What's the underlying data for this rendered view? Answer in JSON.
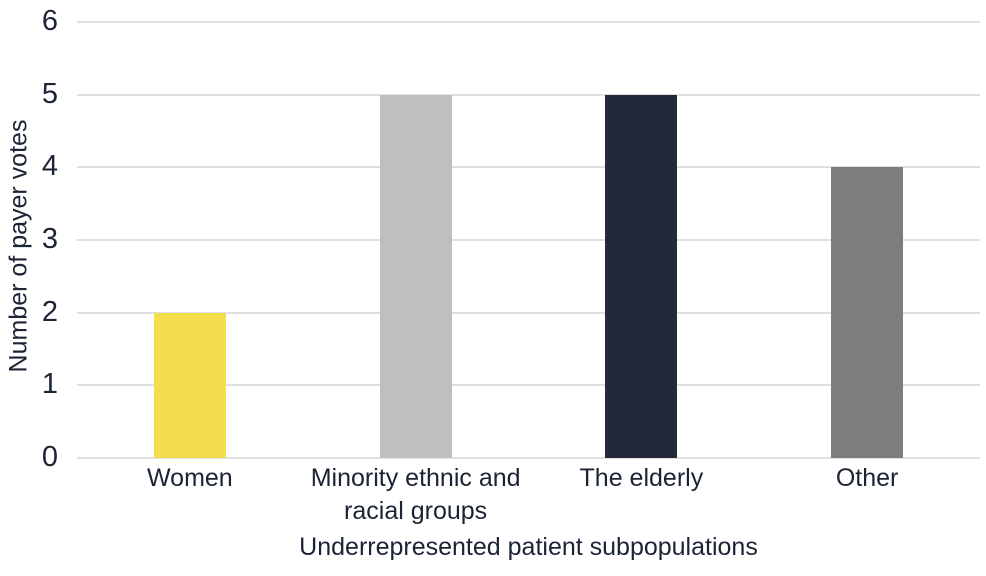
{
  "chart_data": {
    "type": "bar",
    "categories": [
      "Women",
      "Minority ethnic and racial groups",
      "The elderly",
      "Other"
    ],
    "category_slugs": [
      "women",
      "minority-ethnic-and-racial-groups",
      "the-elderly",
      "other"
    ],
    "values": [
      2,
      5,
      5,
      4
    ],
    "bar_colors": [
      "#F5DE4D",
      "#BFBFBF",
      "#232938",
      "#7D7D7D"
    ],
    "title": "",
    "xlabel": "Underrepresented patient subpopulations",
    "ylabel": "Number of payer votes",
    "ylim": [
      0,
      6
    ],
    "yticks": [
      0,
      1,
      2,
      3,
      4,
      5,
      6
    ],
    "grid": "horizontal",
    "legend": "none",
    "colors": {
      "text": "#1B2434",
      "gridline": "#E0E0E0",
      "background": "#FFFFFF"
    }
  }
}
